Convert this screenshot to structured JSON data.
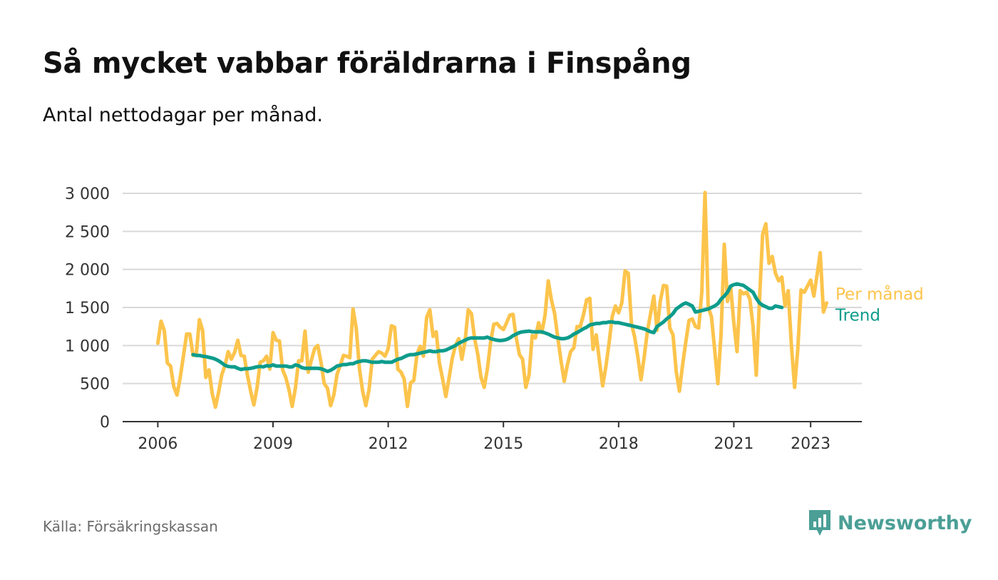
{
  "header": {
    "title": "Så mycket vabbar föräldrarna i Finspång",
    "subtitle": "Antal nettodagar per månad."
  },
  "footer": {
    "source": "Källa: Försäkringskassan",
    "brand": "Newsworthy",
    "brand_icon": "bar-chart-speech-bubble-icon"
  },
  "chart_data": {
    "type": "line",
    "ylim": [
      0,
      3000
    ],
    "yticks": [
      0,
      500,
      1000,
      1500,
      2000,
      2500,
      3000
    ],
    "ytick_labels": [
      "0",
      "500",
      "1 000",
      "1 500",
      "2 000",
      "2 500",
      "3 000"
    ],
    "xlim": [
      "2005-02",
      "2024-05"
    ],
    "xticks": [
      "2006-01",
      "2009-01",
      "2012-01",
      "2015-01",
      "2018-01",
      "2021-01",
      "2023-01"
    ],
    "xtick_labels": [
      "2006",
      "2009",
      "2012",
      "2015",
      "2018",
      "2021",
      "2023"
    ],
    "grid": true,
    "colors": {
      "monthly": "#fcc44c",
      "trend": "#0e9c8c"
    },
    "series": [
      {
        "name": "Per månad",
        "start": "2006-01",
        "values": [
          1030,
          1320,
          1200,
          770,
          730,
          460,
          350,
          580,
          860,
          1150,
          1150,
          870,
          880,
          1340,
          1200,
          580,
          680,
          370,
          190,
          390,
          620,
          740,
          920,
          820,
          910,
          1070,
          870,
          860,
          610,
          400,
          220,
          440,
          780,
          800,
          860,
          690,
          1170,
          1070,
          1060,
          680,
          580,
          420,
          200,
          440,
          800,
          800,
          1190,
          650,
          810,
          960,
          1000,
          780,
          500,
          440,
          210,
          350,
          620,
          740,
          870,
          860,
          840,
          1480,
          1230,
          700,
          400,
          210,
          420,
          820,
          870,
          920,
          900,
          860,
          960,
          1260,
          1240,
          690,
          650,
          560,
          200,
          510,
          540,
          890,
          990,
          860,
          1370,
          1470,
          1120,
          1180,
          770,
          560,
          330,
          570,
          830,
          1000,
          1090,
          820,
          1050,
          1470,
          1420,
          1090,
          880,
          580,
          450,
          700,
          1050,
          1280,
          1290,
          1240,
          1210,
          1300,
          1400,
          1410,
          1100,
          880,
          820,
          450,
          610,
          1130,
          1100,
          1300,
          1170,
          1400,
          1850,
          1600,
          1420,
          1100,
          800,
          530,
          750,
          920,
          970,
          1250,
          1250,
          1400,
          1600,
          1620,
          950,
          1140,
          800,
          470,
          720,
          1030,
          1380,
          1520,
          1430,
          1560,
          1980,
          1950,
          1290,
          1110,
          850,
          550,
          850,
          1190,
          1420,
          1650,
          1200,
          1580,
          1790,
          1780,
          1230,
          1140,
          660,
          400,
          750,
          1050,
          1330,
          1350,
          1250,
          1230,
          1700,
          3010,
          1500,
          1380,
          950,
          500,
          1150,
          2330,
          1580,
          1780,
          1300,
          920,
          1720,
          1680,
          1700,
          1610,
          1250,
          610,
          1570,
          2460,
          2600,
          2080,
          2170,
          1950,
          1850,
          1900,
          1520,
          1720,
          1000,
          450,
          960,
          1730,
          1700,
          1780,
          1860,
          1650,
          1930,
          2220,
          1440,
          1560
        ]
      },
      {
        "name": "Trend",
        "start": "2006-12",
        "values": [
          880,
          870,
          870,
          860,
          855,
          845,
          835,
          820,
          800,
          770,
          740,
          725,
          720,
          720,
          700,
          685,
          695,
          695,
          700,
          710,
          720,
          725,
          720,
          735,
          730,
          745,
          730,
          730,
          730,
          730,
          720,
          720,
          745,
          735,
          710,
          700,
          700,
          700,
          700,
          700,
          695,
          680,
          660,
          675,
          700,
          730,
          740,
          750,
          750,
          760,
          760,
          780,
          790,
          800,
          800,
          790,
          780,
          780,
          780,
          790,
          780,
          780,
          780,
          800,
          820,
          830,
          850,
          870,
          880,
          880,
          890,
          900,
          910,
          920,
          930,
          920,
          920,
          930,
          930,
          940,
          960,
          980,
          1000,
          1030,
          1050,
          1070,
          1090,
          1100,
          1100,
          1100,
          1100,
          1100,
          1110,
          1090,
          1080,
          1070,
          1065,
          1070,
          1080,
          1100,
          1130,
          1150,
          1170,
          1180,
          1185,
          1190,
          1180,
          1180,
          1180,
          1180,
          1165,
          1150,
          1130,
          1110,
          1100,
          1090,
          1090,
          1100,
          1120,
          1150,
          1170,
          1195,
          1220,
          1240,
          1270,
          1280,
          1290,
          1290,
          1300,
          1300,
          1310,
          1310,
          1300,
          1300,
          1290,
          1280,
          1270,
          1260,
          1250,
          1240,
          1230,
          1220,
          1200,
          1180,
          1170,
          1250,
          1280,
          1310,
          1350,
          1380,
          1420,
          1480,
          1510,
          1540,
          1560,
          1540,
          1520,
          1440,
          1450,
          1460,
          1470,
          1480,
          1500,
          1520,
          1550,
          1610,
          1650,
          1700,
          1780,
          1800,
          1810,
          1800,
          1790,
          1760,
          1730,
          1700,
          1620,
          1560,
          1530,
          1510,
          1490,
          1490,
          1520,
          1510,
          1500
        ]
      }
    ],
    "label_positions": {
      "monthly_label_value": 1680,
      "trend_label_value": 1400
    }
  }
}
